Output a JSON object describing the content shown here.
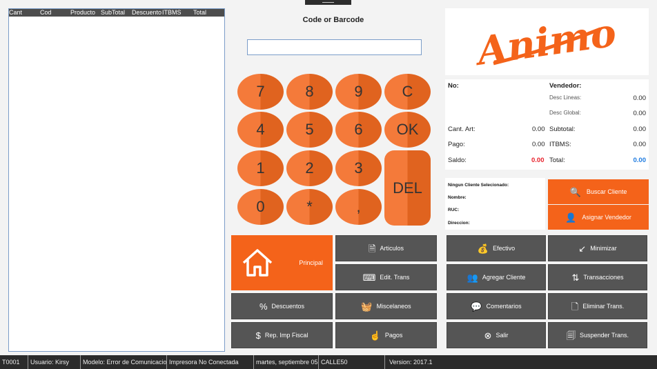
{
  "table": {
    "columns": [
      "Cant",
      "Cod",
      "Producto",
      "SubTotal",
      "Descuento",
      "ITBMS",
      "Total"
    ],
    "rows": []
  },
  "code": {
    "label": "Code or Barcode",
    "value": ""
  },
  "keypad": [
    "7",
    "8",
    "9",
    "C",
    "4",
    "5",
    "6",
    "OK",
    "1",
    "2",
    "3",
    "DEL",
    "0",
    "*",
    ","
  ],
  "logo": {
    "text": "Animo",
    "color": "#f4631a"
  },
  "info": {
    "no_label": "No:",
    "vendedor_label": "Vendedor:",
    "desc_lineas_label": "Desc Lineas:",
    "desc_lineas": "0.00",
    "desc_global_label": "Desc Global:",
    "desc_global": "0.00",
    "cant_label": "Cant. Art:",
    "cant": "0.00",
    "subtotal_label": "Subtotal:",
    "subtotal": "0.00",
    "pago_label": "Pago:",
    "pago": "0.00",
    "itbms_label": "ITBMS:",
    "itbms": "0.00",
    "saldo_label": "Saldo:",
    "saldo": "0.00",
    "total_label": "Total:",
    "total": "0.00",
    "saldo_color": "#e8202a",
    "total_color": "#1e7be0"
  },
  "client": {
    "none": "Ningun Cliente Selecionado:",
    "nombre": "Nombre:",
    "ruc": "RUC:",
    "direccion": "Direccion:",
    "buscar": "Buscar Cliente",
    "asignar": "Asignar Vendedor"
  },
  "buttons": {
    "principal": "Principal",
    "articulos": "Articulos",
    "edit_trans": "Edit. Trans",
    "descuentos": "Descuentos",
    "miscelaneos": "Miscelaneos",
    "rep_imp": "Rep. Imp Fiscal",
    "pagos": "Pagos",
    "efectivo": "Efectivo",
    "minimizar": "Minimizar",
    "agregar_cliente": "Agregar Cliente",
    "transacciones": "Transacciones",
    "comentarios": "Comentarios",
    "eliminar": "Eliminar Trans.",
    "salir": "Salir",
    "suspender": "Suspender Trans."
  },
  "status": {
    "terminal": "T0001",
    "usuario": "Usuario: Kirsy",
    "modelo": "Modelo: Error de Comunicacion",
    "impresora": "Impresora No Conectada",
    "fecha": "martes, septiembre 05,",
    "calle": "CALLE50",
    "version": "Version: 2017.1"
  }
}
